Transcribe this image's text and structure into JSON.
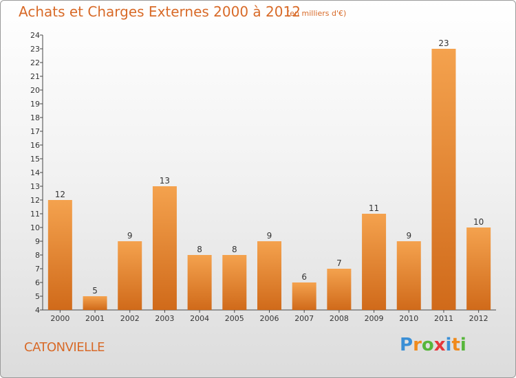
{
  "chart_data": {
    "type": "bar",
    "title": "Achats et Charges Externes 2000 à 2012",
    "unit_label": "(en milliers d'€)",
    "categories": [
      "2000",
      "2001",
      "2002",
      "2003",
      "2004",
      "2005",
      "2006",
      "2007",
      "2008",
      "2009",
      "2010",
      "2011",
      "2012"
    ],
    "values": [
      12,
      5,
      9,
      13,
      8,
      8,
      9,
      6,
      7,
      11,
      9,
      23,
      10
    ],
    "ylim": [
      4,
      24
    ],
    "yticks": [
      4,
      5,
      6,
      7,
      8,
      9,
      10,
      11,
      12,
      13,
      14,
      15,
      16,
      17,
      18,
      19,
      20,
      21,
      22,
      23,
      24
    ],
    "grid": false,
    "bar_color_top": "#f4a24e",
    "bar_color_bottom": "#d06a1a"
  },
  "commune": "CATONVIELLE",
  "logo": {
    "letters": [
      "P",
      "r",
      "o",
      "x",
      "i",
      "t",
      "i"
    ],
    "colors": [
      "#3a8fd6",
      "#f08a1c",
      "#57b63b",
      "#e6373b",
      "#3a8fd6",
      "#f08a1c",
      "#57b63b"
    ]
  }
}
